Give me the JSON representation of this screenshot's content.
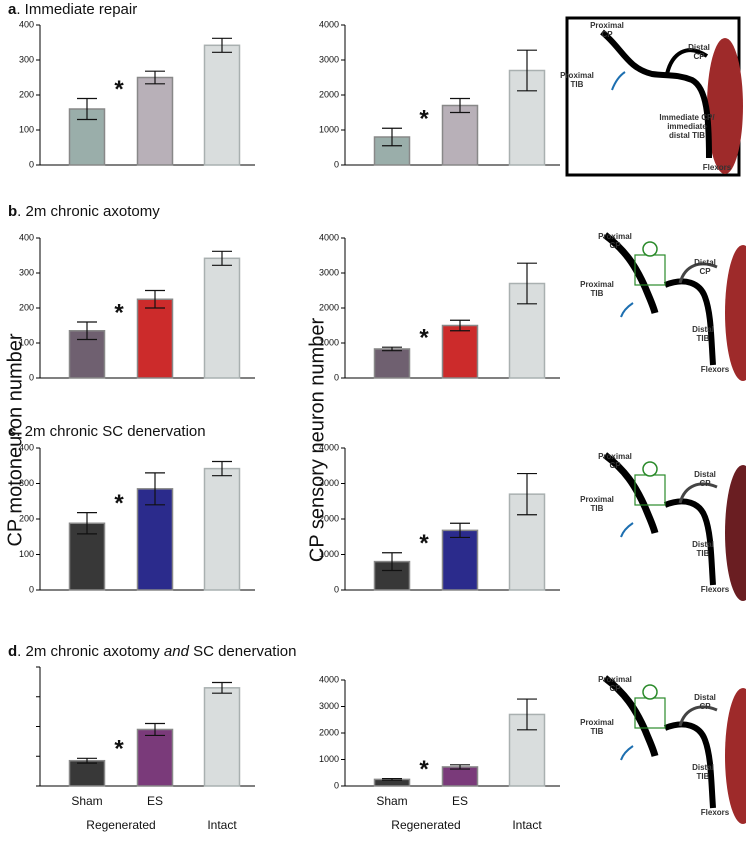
{
  "panels": [
    {
      "letter": "a",
      "text": ". Immediate repair"
    },
    {
      "letter": "b",
      "text": ". 2m chronic axotomy"
    },
    {
      "letter": "c",
      "text": ". 2m chronic SC denervation"
    },
    {
      "letter": "d",
      "text": ". 2m chronic axotomy ",
      "italic": "and",
      "tail": " SC denervation"
    }
  ],
  "y_labels": [
    "CP motoneuron number",
    "CP sensory neuron number"
  ],
  "chart_data": [
    {
      "type": "bar",
      "categories": [
        null,
        null,
        null
      ],
      "values": [
        160,
        250,
        342
      ],
      "errors": [
        30,
        18,
        20
      ],
      "colors": [
        "#9aaeaa",
        "#b8b0b8",
        "#d9dddd"
      ],
      "ylim": [
        0,
        400
      ],
      "yticks": [
        0,
        100,
        200,
        300,
        400
      ],
      "annotation": "*"
    },
    {
      "type": "bar",
      "categories": [
        null,
        null,
        null
      ],
      "values": [
        800,
        1700,
        2700
      ],
      "errors": [
        250,
        200,
        580
      ],
      "colors": [
        "#9aaeaa",
        "#b8b0b8",
        "#d9dddd"
      ],
      "ylim": [
        0,
        4000
      ],
      "yticks": [
        0,
        1000,
        2000,
        3000,
        4000
      ],
      "annotation": "*"
    },
    {
      "type": "bar",
      "categories": [
        null,
        null,
        null
      ],
      "values": [
        135,
        225,
        342
      ],
      "errors": [
        25,
        25,
        20
      ],
      "colors": [
        "#6f6070",
        "#cc2b2b",
        "#d9dddd"
      ],
      "ylim": [
        0,
        400
      ],
      "yticks": [
        0,
        100,
        200,
        300,
        400
      ],
      "annotation": "*"
    },
    {
      "type": "bar",
      "categories": [
        null,
        null,
        null
      ],
      "values": [
        830,
        1500,
        2700
      ],
      "errors": [
        50,
        150,
        580
      ],
      "colors": [
        "#6f6070",
        "#cc2b2b",
        "#d9dddd"
      ],
      "ylim": [
        0,
        4000
      ],
      "yticks": [
        0,
        1000,
        2000,
        3000,
        4000
      ],
      "annotation": "*"
    },
    {
      "type": "bar",
      "categories": [
        null,
        null,
        null
      ],
      "values": [
        188,
        285,
        342
      ],
      "errors": [
        30,
        45,
        20
      ],
      "colors": [
        "#383838",
        "#2b2b8c",
        "#d9dddd"
      ],
      "ylim": [
        0,
        400
      ],
      "yticks": [
        0,
        100,
        200,
        300,
        400
      ],
      "annotation": "*"
    },
    {
      "type": "bar",
      "categories": [
        null,
        null,
        null
      ],
      "values": [
        800,
        1680,
        2700
      ],
      "errors": [
        250,
        200,
        580
      ],
      "colors": [
        "#383838",
        "#2b2b8c",
        "#d9dddd"
      ],
      "ylim": [
        0,
        4000
      ],
      "yticks": [
        0,
        1000,
        2000,
        3000,
        4000
      ],
      "annotation": "*"
    },
    {
      "type": "bar",
      "categories": [
        "Sham",
        "ES",
        "Intact"
      ],
      "group_label": "Regenerated",
      "values": [
        85,
        190,
        330
      ],
      "errors": [
        8,
        20,
        18
      ],
      "colors": [
        "#383838",
        "#7a3a7a",
        "#d9dddd"
      ],
      "ylim": [
        0,
        400
      ],
      "yticks": [
        0,
        100,
        200,
        300,
        400
      ],
      "tick_labels": false,
      "annotation": "*"
    },
    {
      "type": "bar",
      "categories": [
        "Sham",
        "ES",
        "Intact"
      ],
      "group_label": "Regenerated",
      "values": [
        250,
        720,
        2700
      ],
      "errors": [
        30,
        80,
        580
      ],
      "colors": [
        "#383838",
        "#7a3a7a",
        "#d9dddd"
      ],
      "ylim": [
        0,
        4000
      ],
      "yticks": [
        0,
        1000,
        2000,
        3000,
        4000
      ],
      "annotation": "*"
    }
  ],
  "diagrams": [
    {
      "labels": [
        {
          "lines": [
            "Proximal",
            "CP"
          ]
        },
        {
          "lines": [
            "Proximal",
            "TIB"
          ]
        },
        {
          "lines": [
            "Distal",
            "CP"
          ]
        },
        {
          "lines": [
            "Immediate CP/",
            "immediate",
            "distal TIB"
          ]
        },
        {
          "lines": [
            "Flexors"
          ]
        }
      ]
    },
    {
      "labels": [
        {
          "lines": [
            "Proximal",
            "CP"
          ]
        },
        {
          "lines": [
            "Proximal",
            "TIB"
          ]
        },
        {
          "lines": [
            "Distal",
            "CP"
          ]
        },
        {
          "lines": [
            "Distal",
            "TIB"
          ]
        },
        {
          "lines": [
            "Flexors"
          ]
        }
      ]
    },
    {
      "labels": [
        {
          "lines": [
            "Proximal",
            "CP"
          ]
        },
        {
          "lines": [
            "Proximal",
            "TIB"
          ]
        },
        {
          "lines": [
            "Distal",
            "CP"
          ]
        },
        {
          "lines": [
            "Distal",
            "TIB"
          ]
        },
        {
          "lines": [
            "Flexors"
          ]
        }
      ]
    },
    {
      "labels": [
        {
          "lines": [
            "Proximal",
            "CP"
          ]
        },
        {
          "lines": [
            "Proximal",
            "TIB"
          ]
        },
        {
          "lines": [
            "Distal",
            "CP"
          ]
        },
        {
          "lines": [
            "Distal",
            "TIB"
          ]
        },
        {
          "lines": [
            "Flexors"
          ]
        }
      ]
    }
  ]
}
